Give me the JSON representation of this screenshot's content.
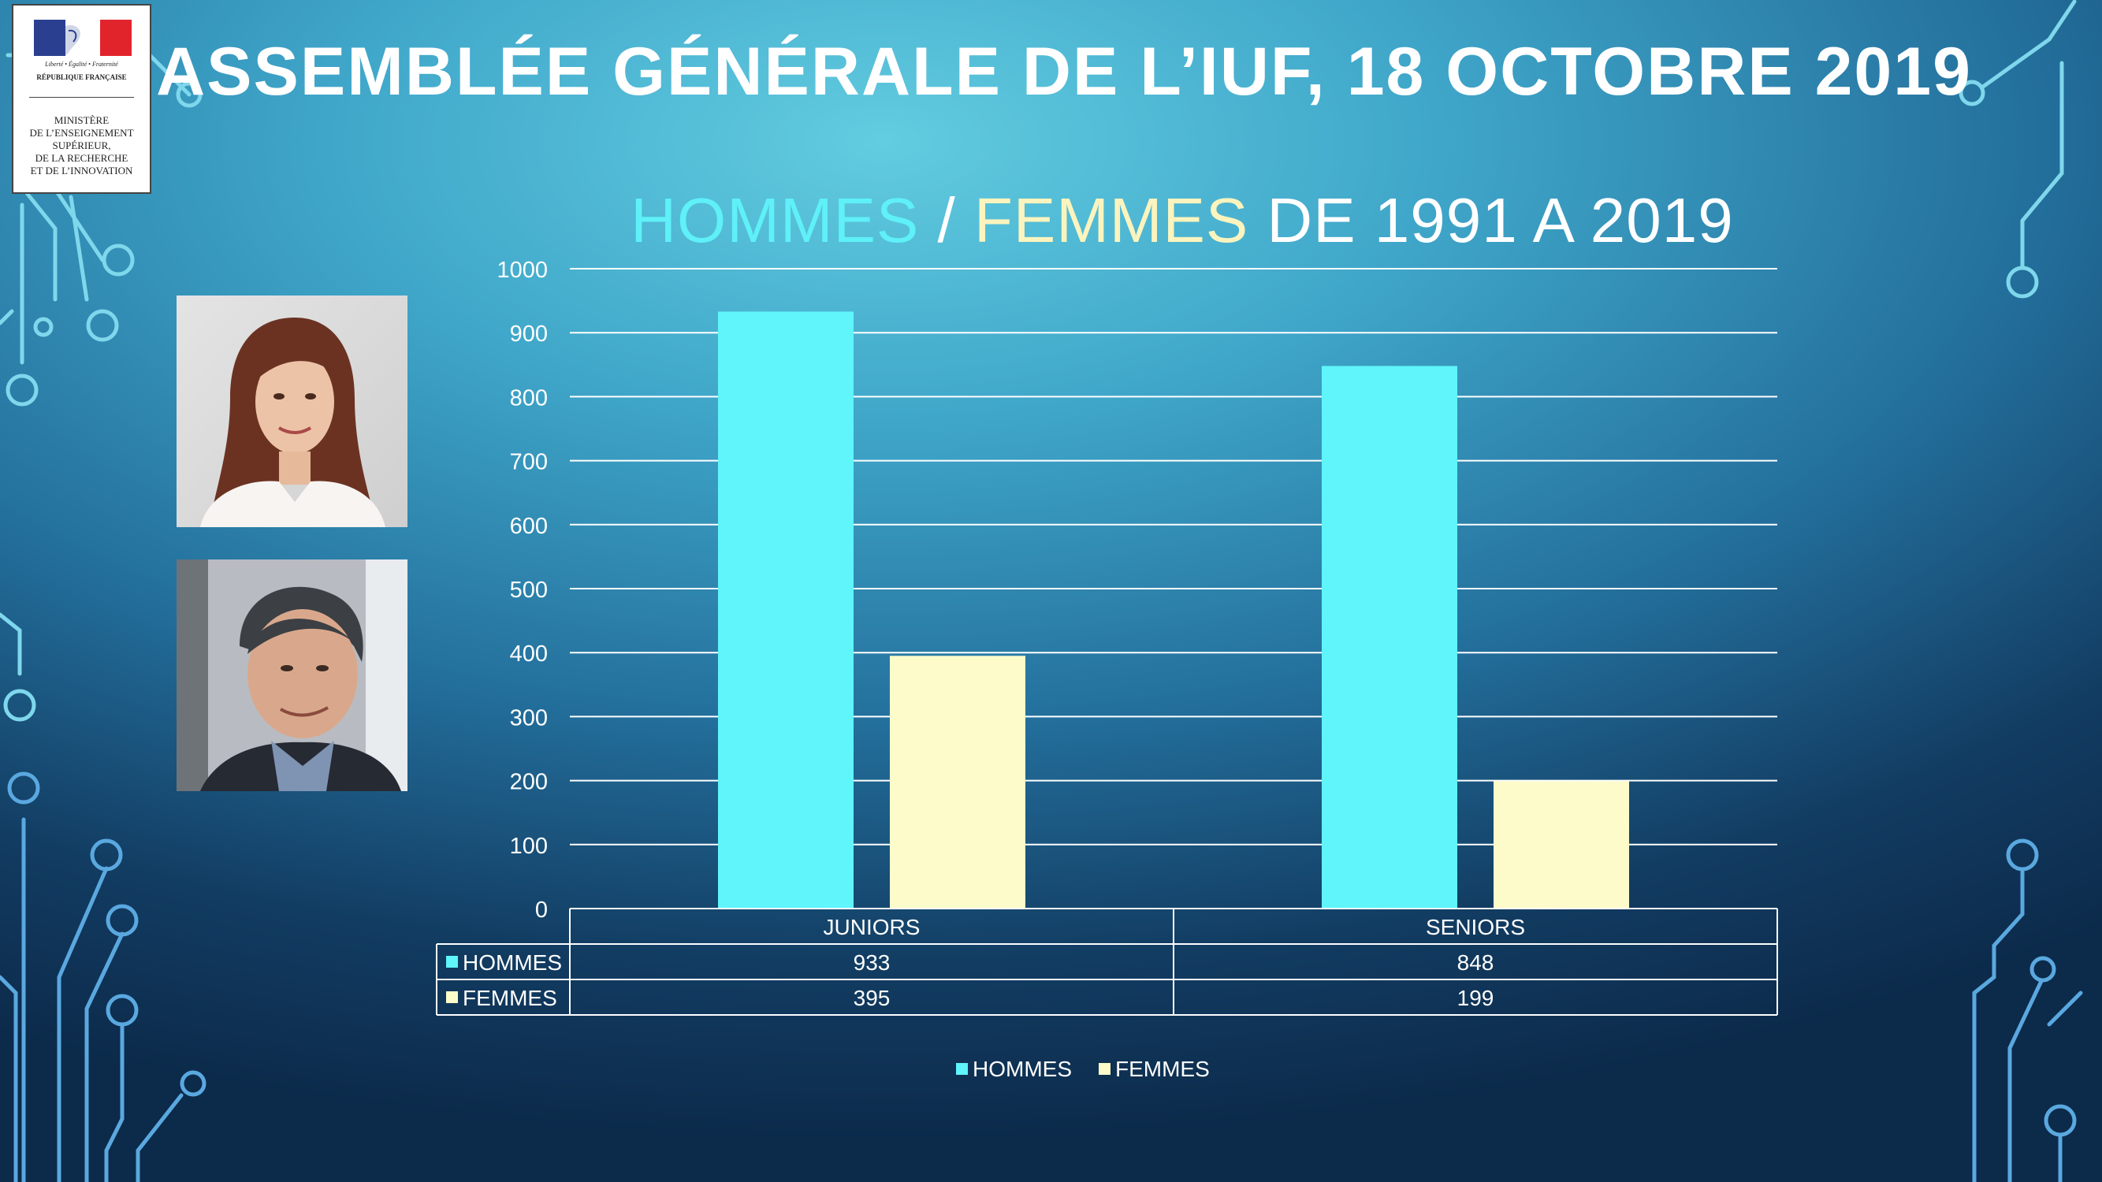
{
  "logo": {
    "motto": "Liberté • Égalité • Fraternité",
    "republic": "RÉPUBLIQUE FRANÇAISE",
    "ministry": "MINISTÈRE\nDE L’ENSEIGNEMENT\nSUPÉRIEUR,\nDE LA RECHERCHE\nET DE L’INNOVATION"
  },
  "header": {
    "title": "ASSEMBLÉE GÉNÉRALE DE L’IUF, 18 OCTOBRE 2019"
  },
  "subtitle": {
    "men": "HOMMES",
    "slash": " / ",
    "women": "FEMMES",
    "rest": " DE 1991 A 2019"
  },
  "colors": {
    "men": "#5ff5fa",
    "women": "#fdfbca",
    "grid": "#ffffff"
  },
  "chart_data": {
    "type": "bar",
    "title": "HOMMES / FEMMES DE 1991 A 2019",
    "categories": [
      "JUNIORS",
      "SENIORS"
    ],
    "series": [
      {
        "name": "HOMMES",
        "values": [
          933,
          848
        ]
      },
      {
        "name": "FEMMES",
        "values": [
          395,
          199
        ]
      }
    ],
    "ylim": [
      0,
      1000
    ],
    "yticks": [
      0,
      100,
      200,
      300,
      400,
      500,
      600,
      700,
      800,
      900,
      1000
    ],
    "grid": true,
    "data_table": true,
    "legend": "bottom"
  }
}
